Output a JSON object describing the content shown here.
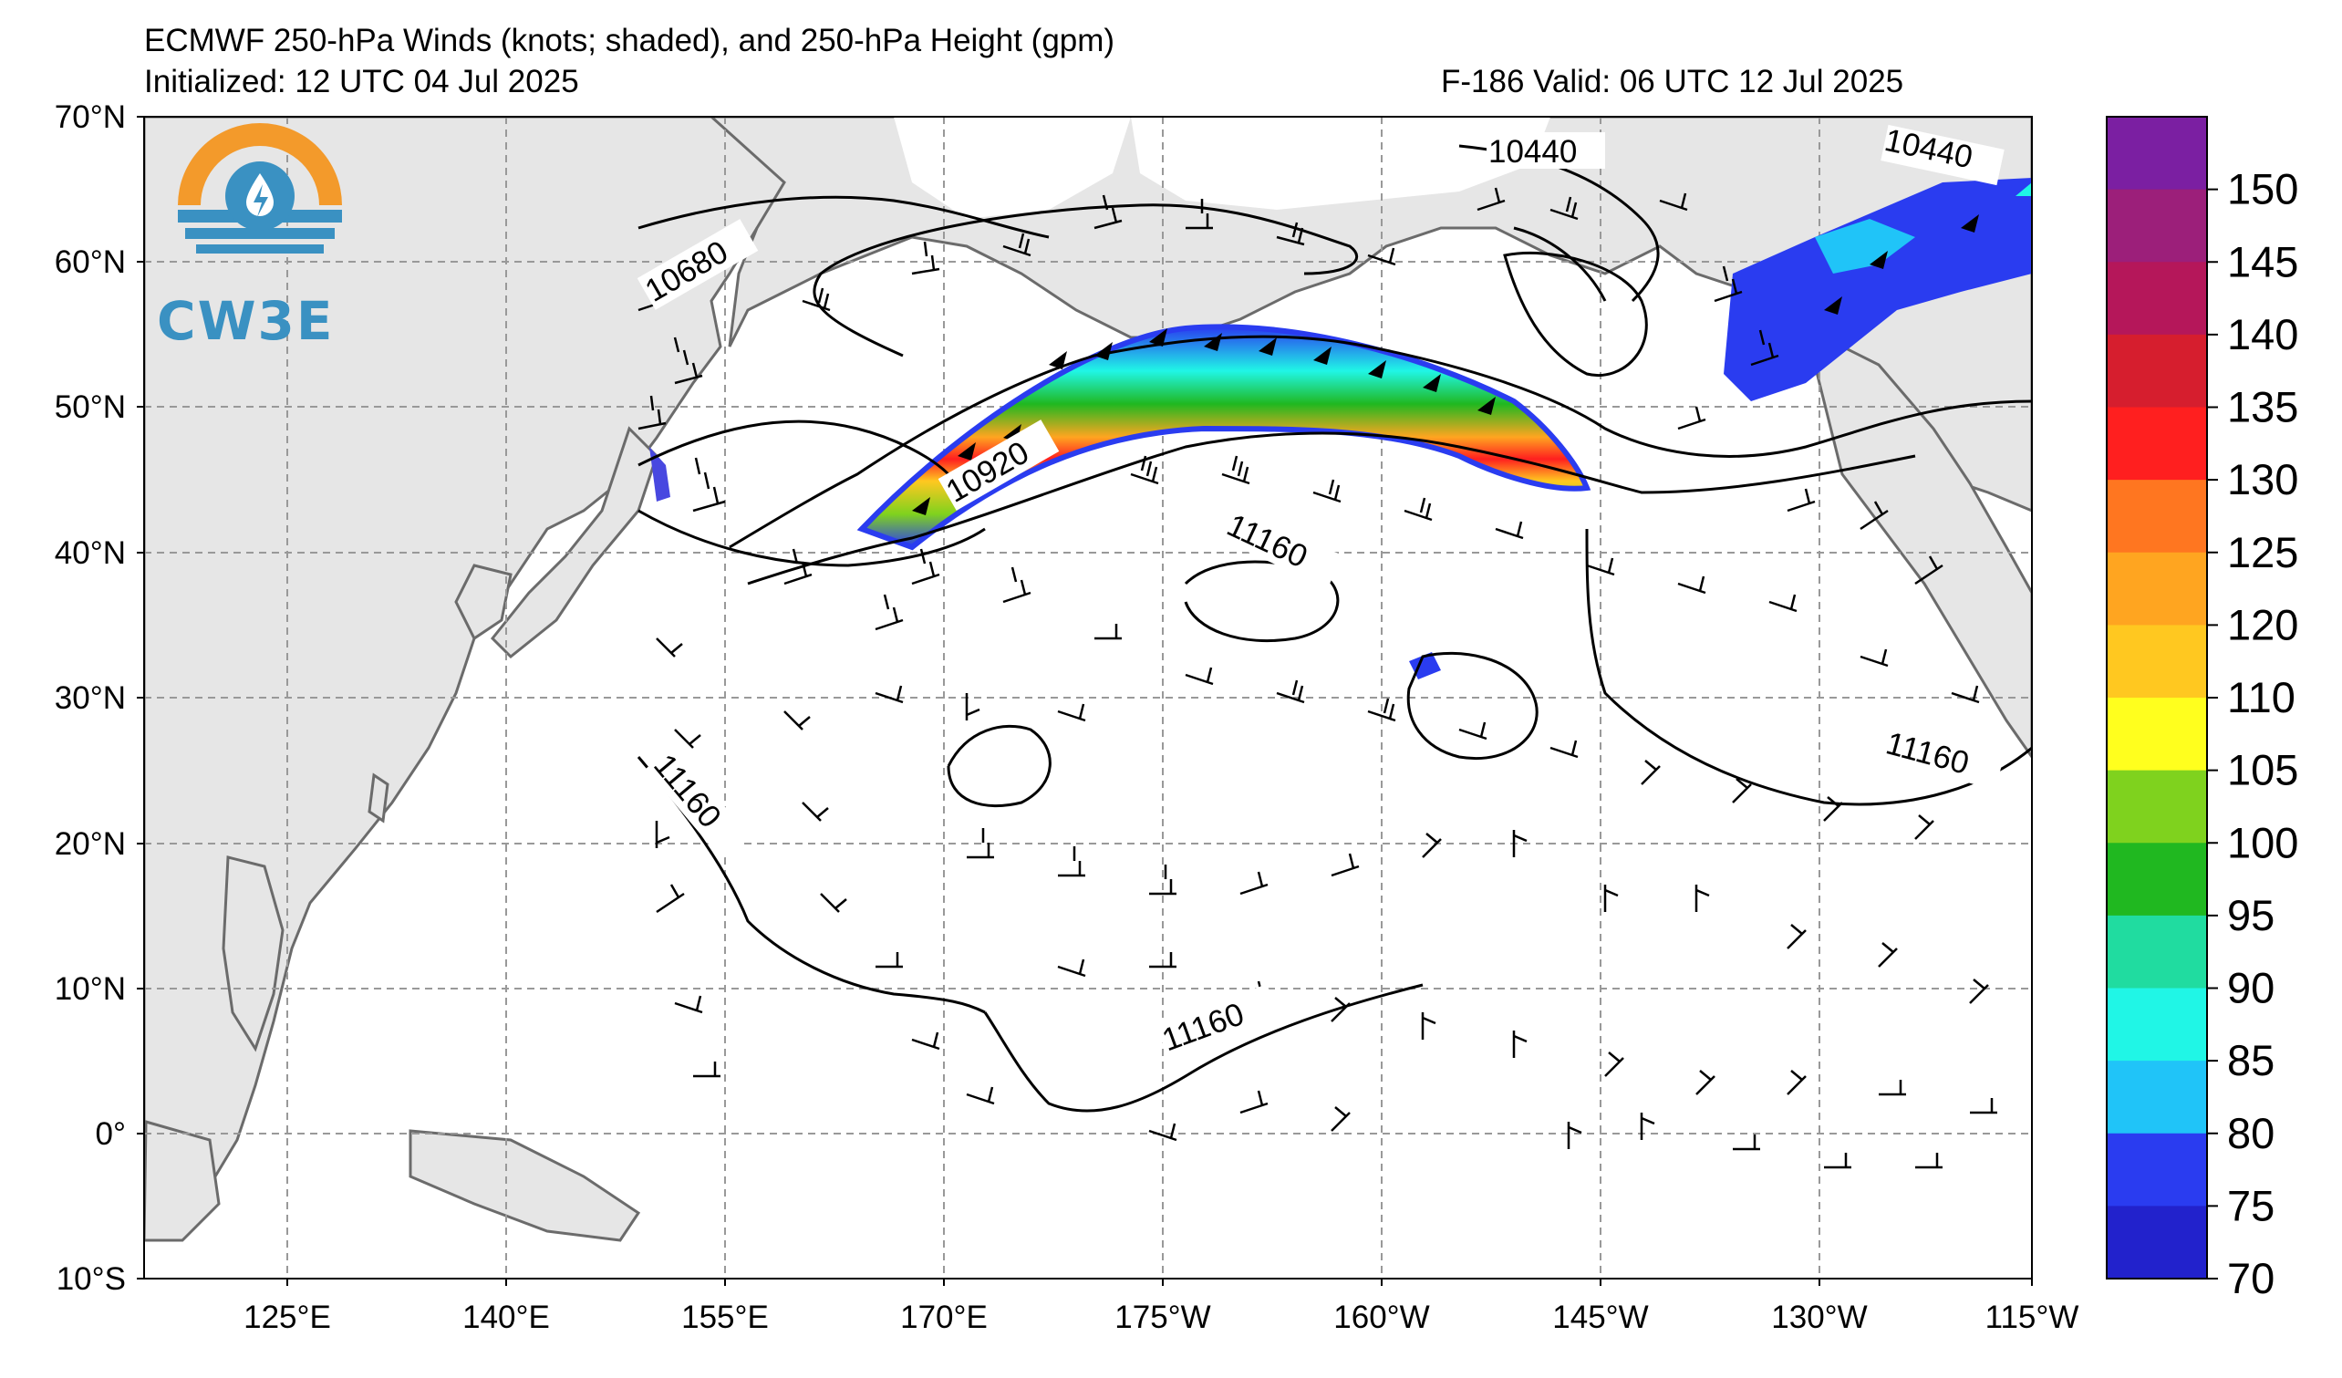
{
  "header": {
    "title": "ECMWF 250-hPa Winds (knots; shaded), and 250-hPa Height (gpm)",
    "initialized": "Initialized: 12 UTC 04 Jul 2025",
    "forecast": "F-186  Valid: 06 UTC 12 Jul 2025"
  },
  "logo": {
    "text": "CW3E",
    "colors": {
      "orange": "#f39a2b",
      "blue": "#3a91c2"
    }
  },
  "axes": {
    "lat_labels": [
      "70°N",
      "60°N",
      "50°N",
      "40°N",
      "30°N",
      "20°N",
      "10°N",
      "0°",
      "10°S"
    ],
    "lon_labels": [
      "125°E",
      "140°E",
      "155°E",
      "170°E",
      "175°W",
      "160°W",
      "145°W",
      "130°W",
      "115°W"
    ]
  },
  "contours": {
    "labels": [
      "10440",
      "10440",
      "10680",
      "10920",
      "11160",
      "11160",
      "11160",
      "11160"
    ]
  },
  "colorbar": {
    "ticks": [
      "150",
      "145",
      "140",
      "135",
      "130",
      "125",
      "120",
      "110",
      "105",
      "100",
      "95",
      "90",
      "85",
      "80",
      "75",
      "70"
    ],
    "bins": [
      {
        "color": "#7b1fa2"
      },
      {
        "color": "#9c1f7a"
      },
      {
        "color": "#b5175a"
      },
      {
        "color": "#d61e2e"
      },
      {
        "color": "#ff1f1f"
      },
      {
        "color": "#ff7620"
      },
      {
        "color": "#ffa520"
      },
      {
        "color": "#ffc820"
      },
      {
        "color": "#ffff1e"
      },
      {
        "color": "#7fd21e"
      },
      {
        "color": "#20b820"
      },
      {
        "color": "#20dca0"
      },
      {
        "color": "#20f6e6"
      },
      {
        "color": "#20c4f8"
      },
      {
        "color": "#2a3cf0"
      },
      {
        "color": "#2222cc"
      }
    ]
  }
}
